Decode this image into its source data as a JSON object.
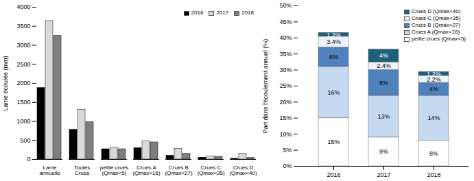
{
  "chart_data": [
    {
      "type": "bar",
      "ylabel": "Lame écoulée (mm)",
      "categories": [
        "Lame\nannuelle",
        "Toutes\nCrues",
        "petite crues\n(Qmax<5)",
        "Crues A\n(Qmax<16)",
        "Crues B\n(Qmax<27)",
        "Crues C\n(Qmax<35)",
        "Crues D\n(Qmax<40)"
      ],
      "series": [
        {
          "name": "2016",
          "color": "#000000",
          "values": [
            1880,
            780,
            270,
            300,
            100,
            50,
            20
          ]
        },
        {
          "name": "2017",
          "color": "#d9d9d9",
          "values": [
            3640,
            1310,
            310,
            480,
            280,
            80,
            150
          ]
        },
        {
          "name": "2018",
          "color": "#7f7f7f",
          "values": [
            3250,
            980,
            270,
            450,
            150,
            70,
            40
          ]
        }
      ],
      "ylim": [
        0,
        4000
      ],
      "yticks": [
        0,
        500,
        1000,
        1500,
        2000,
        2500,
        3000,
        3500,
        4000
      ],
      "legend": "upper right"
    },
    {
      "type": "bar",
      "stacked": true,
      "data_labels": true,
      "ylabel": "Part dans l'écoulement annuel (%)",
      "categories": [
        "2016",
        "2017",
        "2018"
      ],
      "series": [
        {
          "name": "petite crues (Qmax<5)",
          "color": "#ffffff",
          "values": [
            15,
            9,
            8
          ],
          "value_labels": [
            "15%",
            "9%",
            "8%"
          ]
        },
        {
          "name": "Crues A (Qmax<16)",
          "color": "#c5d9f1",
          "values": [
            16,
            13,
            14
          ],
          "value_labels": [
            "16%",
            "13%",
            "14%"
          ]
        },
        {
          "name": "Crues B (Qmax<27)",
          "color": "#4f81bd",
          "values": [
            6,
            8,
            4
          ],
          "value_labels": [
            "6%",
            "8%",
            "4%"
          ]
        },
        {
          "name": "Crues C (Qmax<35)",
          "color": "#eef3fa",
          "values": [
            3.4,
            2.4,
            2.2
          ],
          "value_labels": [
            "3.4%",
            "2.4%",
            "2.2%"
          ]
        },
        {
          "name": "Crues D (Qmax<40)",
          "color": "#1f5f7a",
          "values": [
            1.2,
            4,
            1.2
          ],
          "value_labels": [
            "1.2%",
            "4%",
            "1.2%"
          ]
        }
      ],
      "ylim": [
        0,
        50
      ],
      "yticks": [
        {
          "value": 0,
          "label": "0%"
        },
        {
          "value": 5,
          "label": "5%"
        },
        {
          "value": 10,
          "label": "10%"
        },
        {
          "value": 15,
          "label": "15%"
        },
        {
          "value": 20,
          "label": "20%"
        },
        {
          "value": 25,
          "label": "25%"
        },
        {
          "value": 30,
          "label": "30%"
        },
        {
          "value": 35,
          "label": "35%"
        },
        {
          "value": 40,
          "label": "40%"
        },
        {
          "value": 45,
          "label": "45%"
        },
        {
          "value": 50,
          "label": "50%"
        }
      ],
      "legend": "upper right"
    }
  ]
}
